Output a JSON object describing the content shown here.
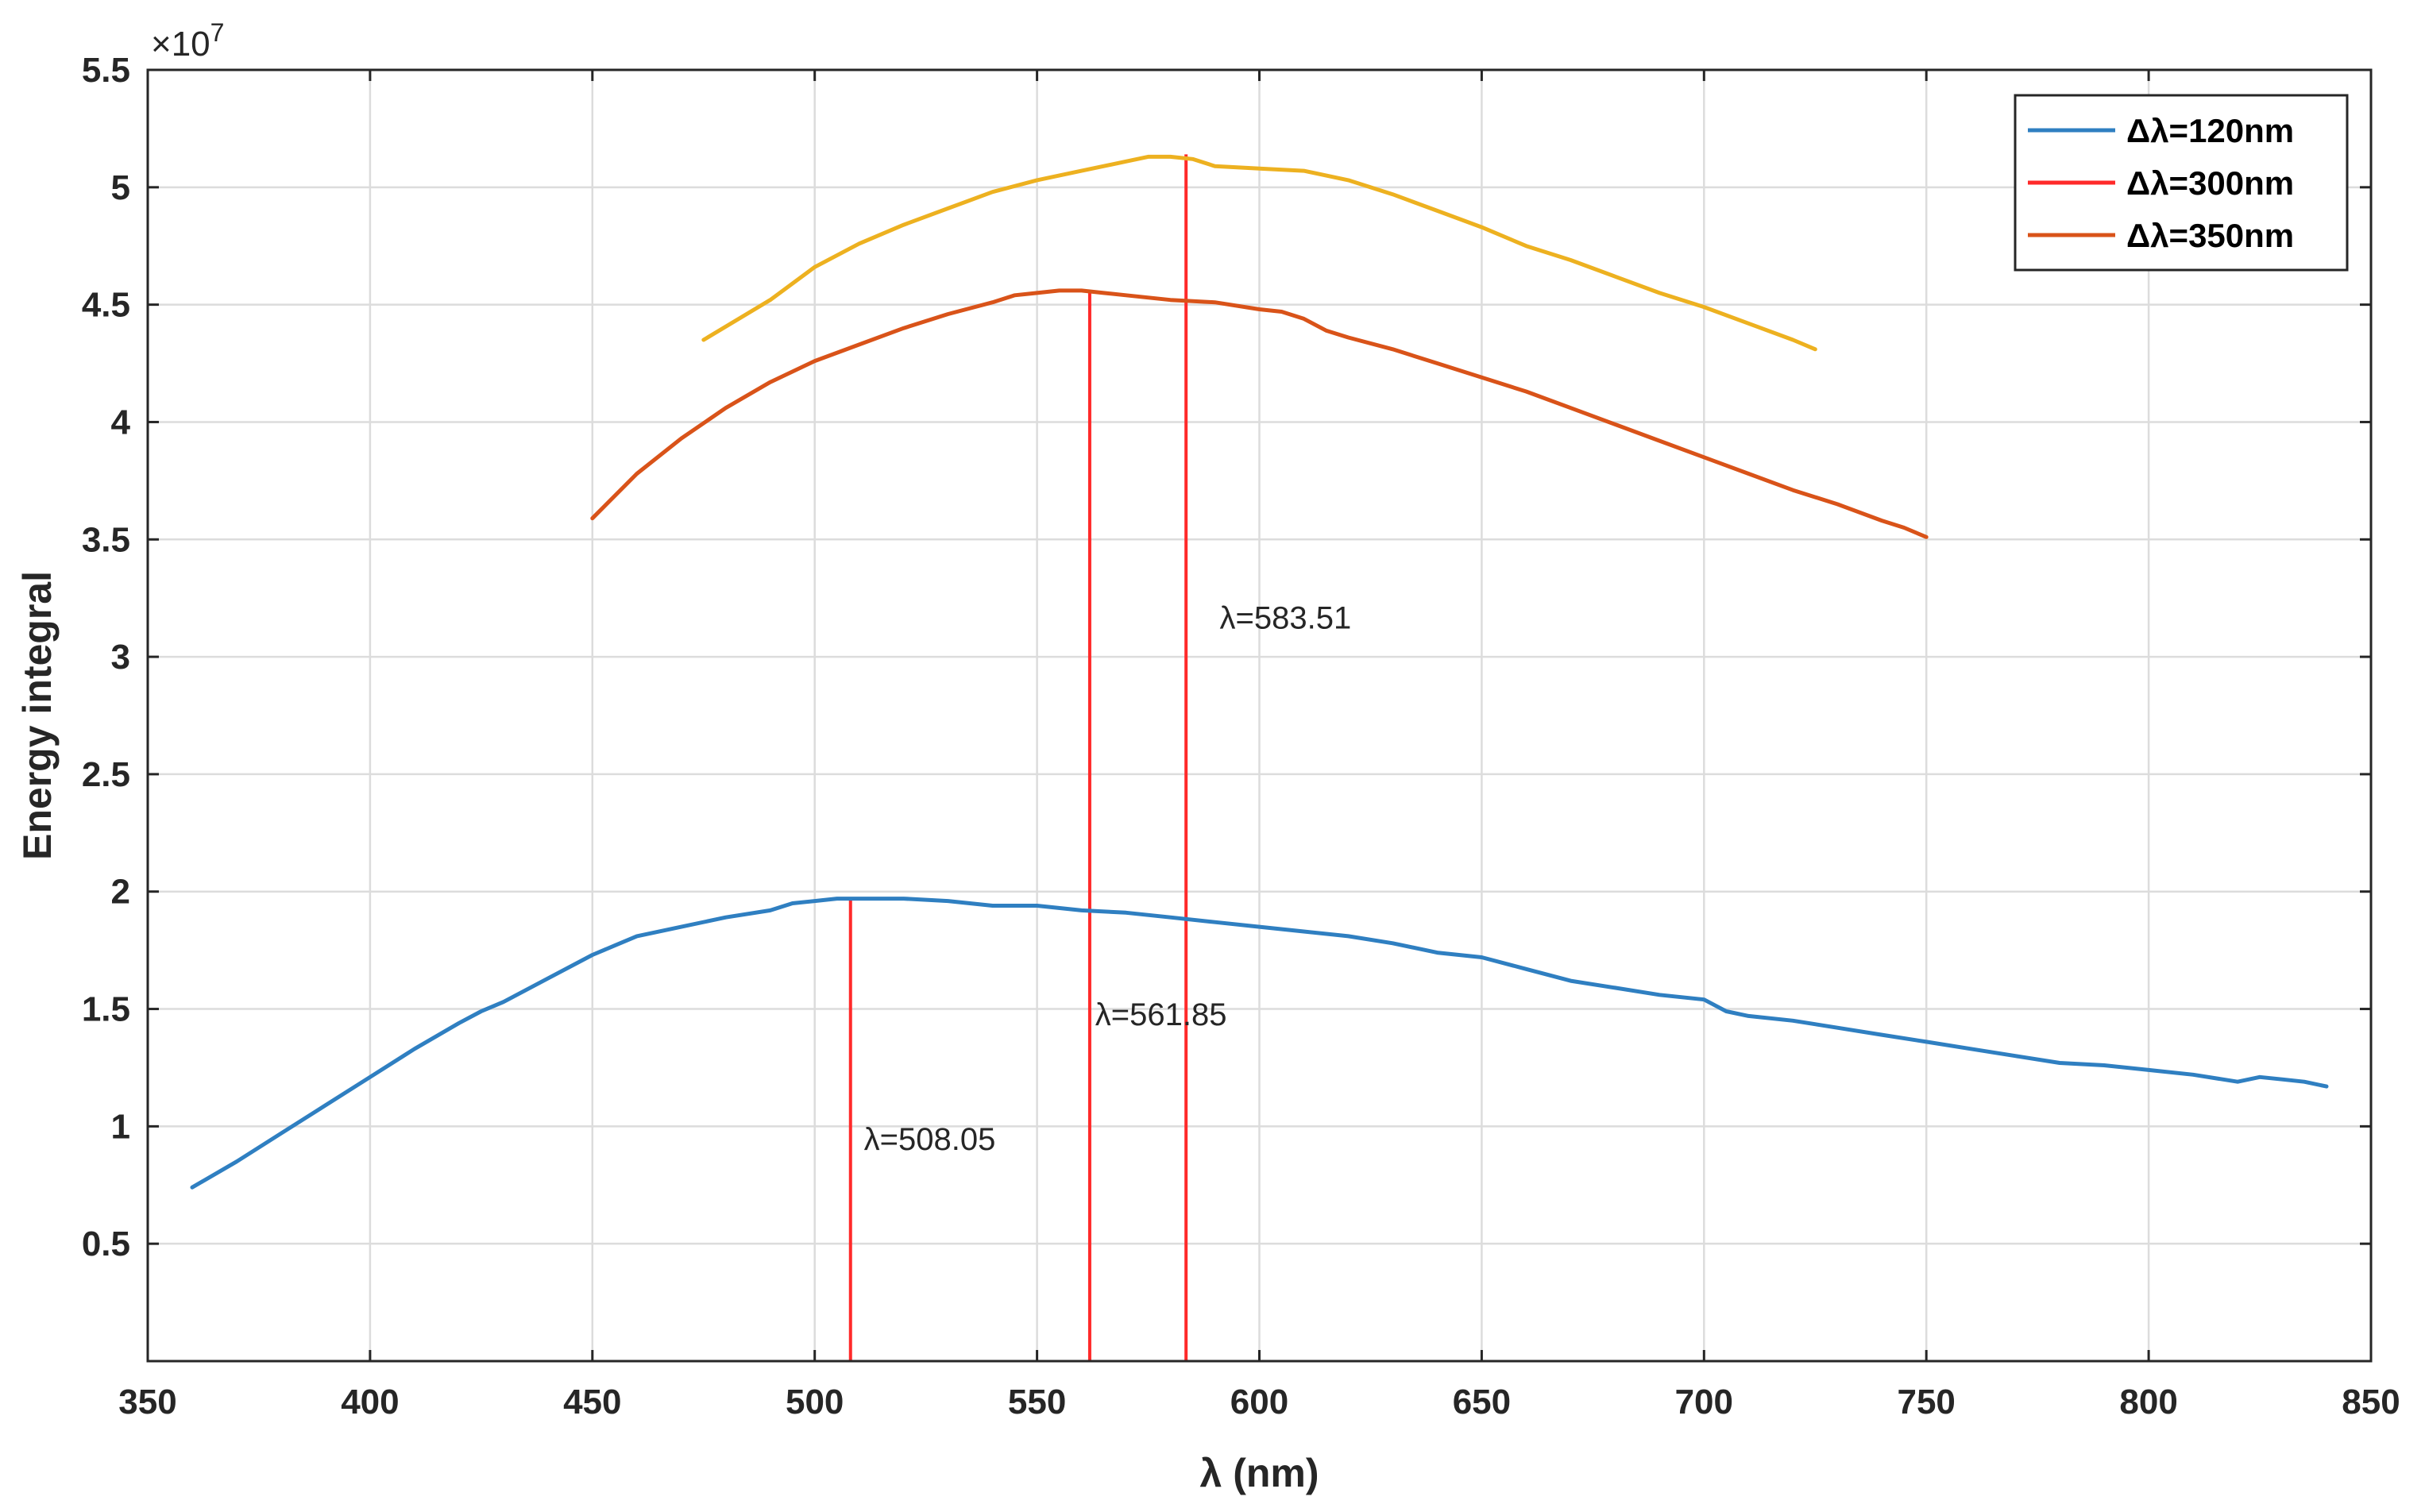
{
  "chart_data": {
    "type": "line",
    "title": "",
    "xlabel": "λ (nm)",
    "ylabel": "Energy integral",
    "y_exponent_label": "×10",
    "y_exponent_power": "7",
    "y_multiplier": 10000000,
    "xlim": [
      350,
      850
    ],
    "ylim": [
      0,
      5.5
    ],
    "xticks": [
      350,
      400,
      450,
      500,
      550,
      600,
      650,
      700,
      750,
      800,
      850
    ],
    "yticks": [
      0.5,
      1,
      1.5,
      2,
      2.5,
      3,
      3.5,
      4,
      4.5,
      5,
      5.5
    ],
    "xtick_labels": [
      "350",
      "400",
      "450",
      "500",
      "550",
      "600",
      "650",
      "700",
      "750",
      "800",
      "850"
    ],
    "ytick_labels": [
      "0.5",
      "1",
      "1.5",
      "2",
      "2.5",
      "3",
      "3.5",
      "4",
      "4.5",
      "5",
      "5.5"
    ],
    "grid": true,
    "legend_position": "top-right",
    "legend_entries": [
      "Δλ=120nm",
      "Δλ=300nm",
      "Δλ=350nm"
    ],
    "series": [
      {
        "name": "Δλ=120nm",
        "color": "#2f7fc1",
        "x": [
          360,
          370,
          380,
          390,
          400,
          410,
          420,
          425,
          430,
          440,
          450,
          455,
          460,
          470,
          480,
          490,
          495,
          500,
          505,
          510,
          520,
          530,
          540,
          550,
          560,
          570,
          580,
          590,
          600,
          610,
          620,
          630,
          640,
          650,
          660,
          670,
          680,
          690,
          700,
          705,
          710,
          720,
          730,
          740,
          750,
          760,
          770,
          780,
          790,
          800,
          810,
          820,
          825,
          830,
          835,
          840
        ],
        "values": [
          0.74,
          0.85,
          0.97,
          1.09,
          1.21,
          1.33,
          1.44,
          1.49,
          1.53,
          1.63,
          1.73,
          1.77,
          1.81,
          1.85,
          1.89,
          1.92,
          1.95,
          1.96,
          1.97,
          1.97,
          1.97,
          1.96,
          1.94,
          1.94,
          1.92,
          1.91,
          1.89,
          1.87,
          1.85,
          1.83,
          1.81,
          1.78,
          1.74,
          1.72,
          1.67,
          1.62,
          1.59,
          1.56,
          1.54,
          1.49,
          1.47,
          1.45,
          1.42,
          1.39,
          1.36,
          1.33,
          1.3,
          1.27,
          1.26,
          1.24,
          1.22,
          1.19,
          1.21,
          1.2,
          1.19,
          1.17
        ]
      },
      {
        "name": "Δλ=300nm",
        "color": "#ff2a2a",
        "x": [],
        "values": []
      },
      {
        "name": "Δλ=350nm",
        "color": "#d95319",
        "x": [
          450,
          460,
          470,
          480,
          490,
          500,
          510,
          520,
          530,
          540,
          545,
          550,
          555,
          560,
          565,
          570,
          580,
          590,
          600,
          605,
          610,
          615,
          620,
          630,
          640,
          650,
          660,
          670,
          680,
          690,
          700,
          710,
          720,
          730,
          740,
          745,
          750
        ],
        "values": [
          3.59,
          3.78,
          3.93,
          4.06,
          4.17,
          4.26,
          4.33,
          4.4,
          4.46,
          4.51,
          4.54,
          4.55,
          4.56,
          4.56,
          4.55,
          4.54,
          4.52,
          4.51,
          4.48,
          4.47,
          4.44,
          4.39,
          4.36,
          4.31,
          4.25,
          4.19,
          4.13,
          4.06,
          3.99,
          3.92,
          3.85,
          3.78,
          3.71,
          3.65,
          3.58,
          3.55,
          3.51
        ]
      },
      {
        "color": "#edb120",
        "x": [
          475,
          490,
          500,
          510,
          520,
          530,
          540,
          550,
          560,
          570,
          575,
          580,
          585,
          590,
          600,
          610,
          620,
          630,
          640,
          650,
          660,
          670,
          680,
          690,
          700,
          710,
          720,
          725
        ],
        "values": [
          4.35,
          4.52,
          4.66,
          4.76,
          4.84,
          4.91,
          4.98,
          5.03,
          5.07,
          5.11,
          5.13,
          5.13,
          5.12,
          5.09,
          5.08,
          5.07,
          5.03,
          4.97,
          4.9,
          4.83,
          4.75,
          4.69,
          4.62,
          4.55,
          4.49,
          4.42,
          4.35,
          4.31
        ]
      }
    ],
    "annotations": [
      {
        "text": "λ=508.05",
        "x": 508.05,
        "line_top": 1.97,
        "label_x": 510,
        "label_y": 0.9
      },
      {
        "text": "λ=561.85",
        "x": 561.85,
        "line_top": 4.56,
        "label_x": 562,
        "label_y": 1.43
      },
      {
        "text": "λ=583.51",
        "x": 583.51,
        "line_top": 5.14,
        "label_x": 590,
        "label_y": 3.12
      }
    ],
    "annotation_line_color": "#ff2a2a"
  }
}
